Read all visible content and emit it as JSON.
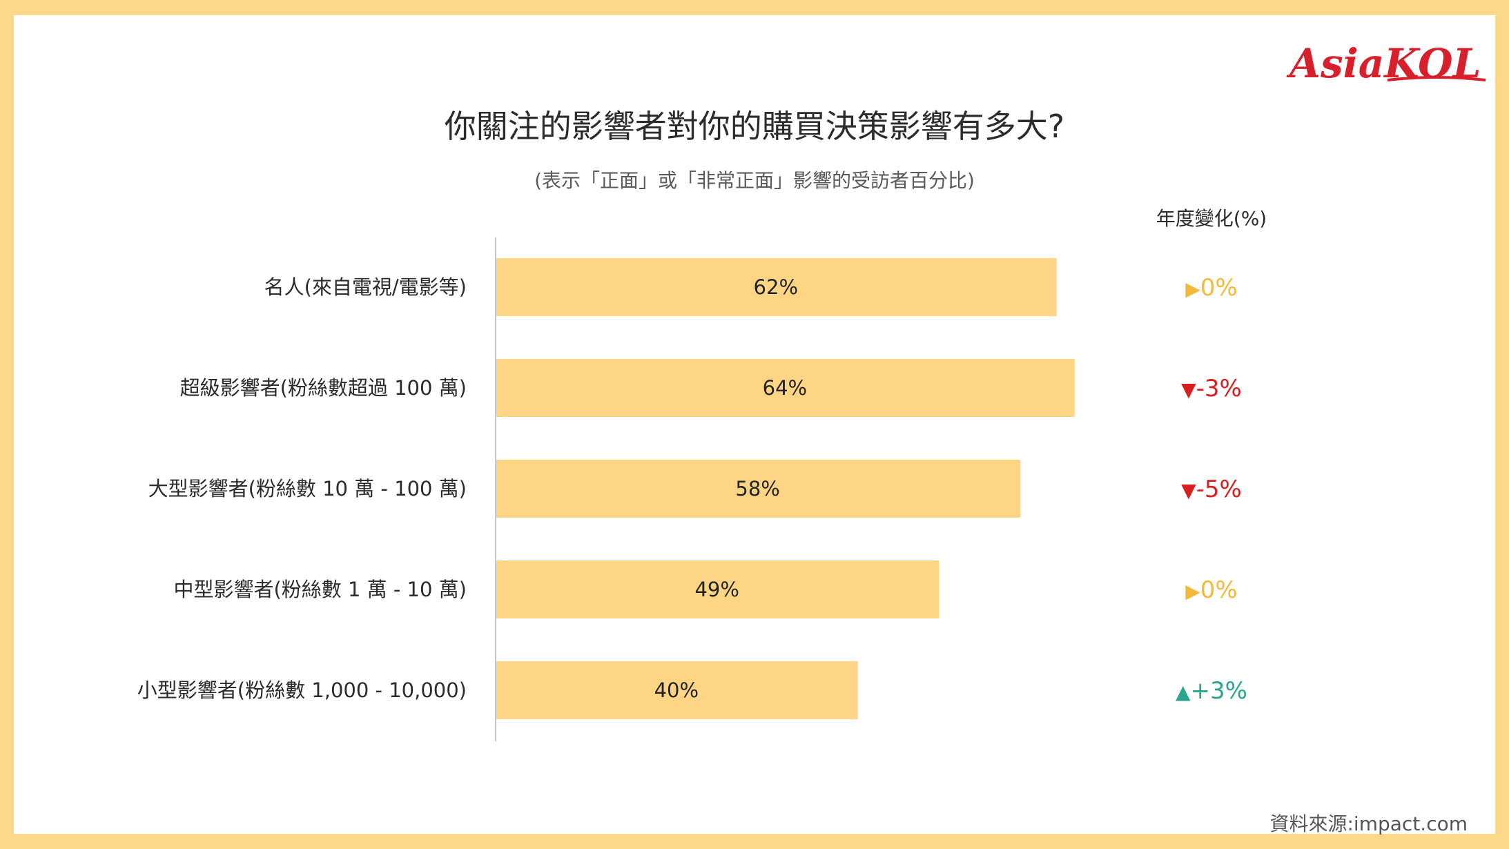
{
  "brand": {
    "logo_text": "AsiaKOL",
    "logo_color": "#d8202c"
  },
  "title": "你關注的影響者對你的購買決策影響有多大?",
  "subtitle": "(表示「正面」或「非常正面」影響的受訪者百分比)",
  "source": "資料來源:impact.com",
  "colors": {
    "bar": "#fdd585",
    "axis": "#c8c8c8",
    "up": "#2ca58d",
    "down": "#d81e1e",
    "neutral": "#f2b93b"
  },
  "chart_data": {
    "type": "bar",
    "orientation": "horizontal",
    "categories": [
      "名人(來自電視/電影等)",
      "超級影響者(粉絲數超過 100 萬)",
      "大型影響者(粉絲數 10 萬 - 100 萬)",
      "中型影響者(粉絲數 1 萬 - 10 萬)",
      "小型影響者(粉絲數 1,000 - 10,000)"
    ],
    "values": [
      62,
      64,
      58,
      49,
      40
    ],
    "value_labels": [
      "62%",
      "64%",
      "58%",
      "49%",
      "40%"
    ],
    "xlim": [
      0,
      100
    ],
    "yoy_header": "年度變化(%)",
    "yoy_change": [
      {
        "label": "0%",
        "direction": "neutral",
        "symbol": "▶"
      },
      {
        "label": "-3%",
        "direction": "down",
        "symbol": "▼"
      },
      {
        "label": "-5%",
        "direction": "down",
        "symbol": "▼"
      },
      {
        "label": "0%",
        "direction": "neutral",
        "symbol": "▶"
      },
      {
        "label": "+3%",
        "direction": "up",
        "symbol": "▲"
      }
    ]
  }
}
